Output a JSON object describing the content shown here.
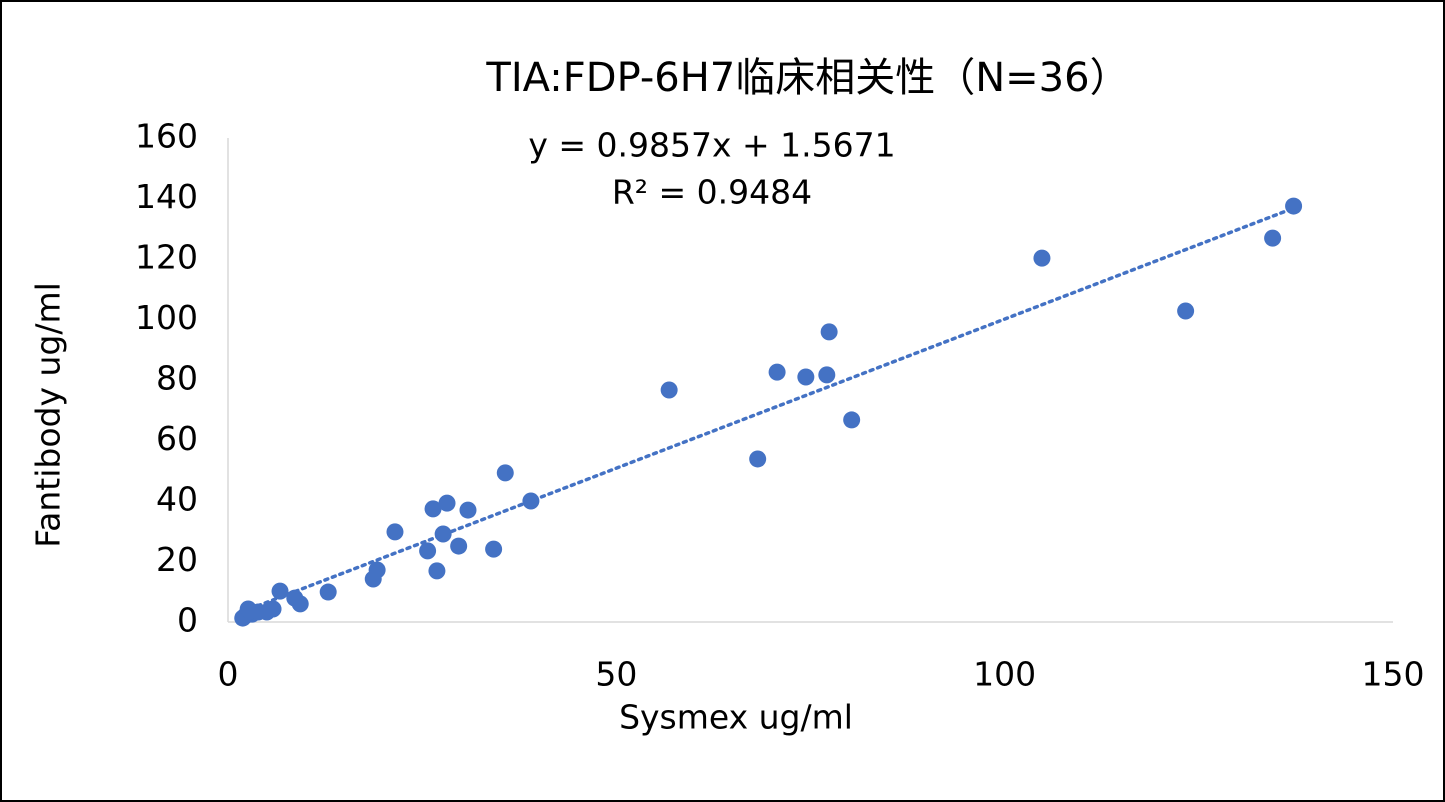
{
  "chart_data": {
    "type": "scatter",
    "title": "TIA:FDP-6H7临床相关性（N=36）",
    "x_label": "Sysmex ug/ml",
    "y_label": "Fantibody ug/ml",
    "xlim": [
      0,
      150
    ],
    "xticks": [
      0,
      50,
      100,
      150
    ],
    "ylim": [
      0,
      160
    ],
    "yticks": [
      0,
      20,
      40,
      60,
      80,
      100,
      120,
      140,
      160
    ],
    "grid": false,
    "trendline": {
      "slope": 0.9857,
      "intercept": 1.5671,
      "equation": "y = 0.9857x + 1.5671",
      "r_squared": 0.9484,
      "r_squared_label": "R² = 0.9484",
      "style": "dotted"
    },
    "series": [
      {
        "name": "Fantibody ug/ml",
        "color": "#4472c4",
        "x": [
          137.2,
          134.5,
          104.8,
          123.3,
          77.4,
          70.7,
          74.4,
          77.1,
          56.8,
          80.3,
          68.2,
          35.7,
          39.0,
          28.2,
          26.4,
          30.9,
          21.5,
          27.7,
          29.7,
          25.7,
          34.2,
          26.9,
          19.2,
          18.7,
          12.9,
          6.7,
          8.6,
          9.3,
          5.8,
          5.0,
          2.6,
          3.1,
          2.2,
          1.9,
          3.9,
          2.8
        ],
        "values": [
          137.5,
          126.9,
          120.3,
          102.8,
          95.9,
          82.6,
          81.0,
          81.7,
          76.7,
          66.8,
          53.9,
          49.3,
          40.0,
          39.3,
          37.4,
          37.0,
          29.8,
          29.1,
          25.1,
          23.5,
          24.1,
          16.9,
          17.2,
          14.2,
          9.9,
          10.2,
          7.9,
          6.0,
          4.3,
          3.3,
          4.3,
          2.6,
          2.0,
          1.3,
          3.3,
          3.6
        ]
      }
    ]
  }
}
